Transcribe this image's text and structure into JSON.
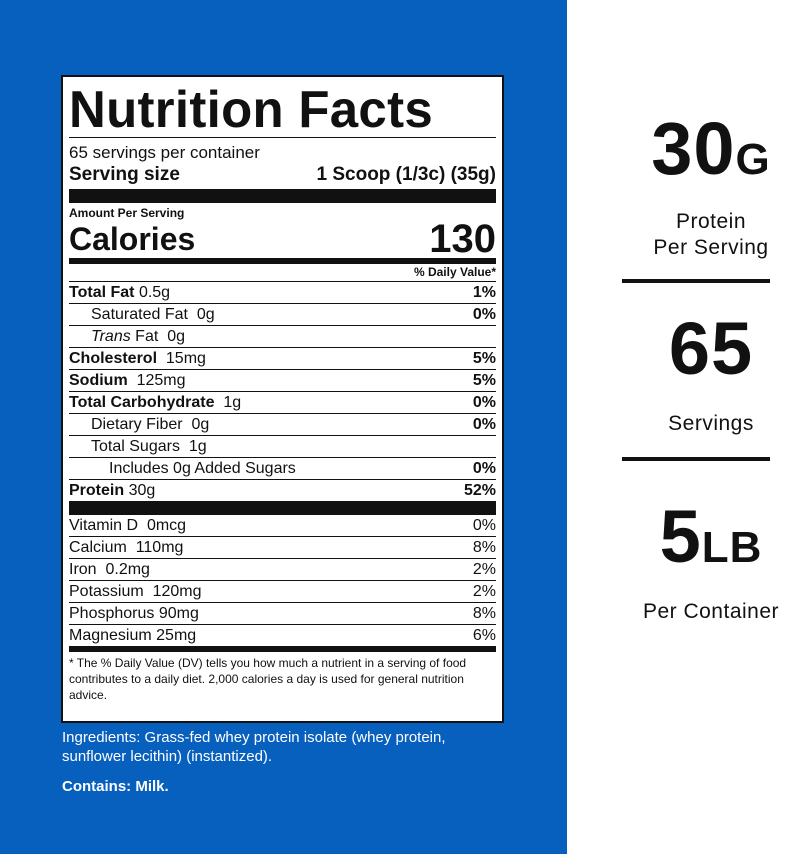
{
  "label": {
    "title": "Nutrition Facts",
    "servings_per_container": "65 servings per container",
    "serving_size_label": "Serving size",
    "serving_size_value": "1 Scoop (1/3c) (35g)",
    "amount_per_serving": "Amount Per Serving",
    "calories_label": "Calories",
    "calories_value": "130",
    "daily_value_header": "% Daily Value*",
    "nutrients": [
      {
        "name": "Total Fat",
        "amount": "0.5g",
        "pct": "1%"
      },
      {
        "name": "Saturated Fat",
        "amount": "0g",
        "pct": "0%"
      },
      {
        "name": "Trans",
        "name_rest": "Fat",
        "amount": "0g",
        "pct": ""
      },
      {
        "name": "Cholesterol",
        "amount": "15mg",
        "pct": "5%"
      },
      {
        "name": "Sodium",
        "amount": "125mg",
        "pct": "5%"
      },
      {
        "name": "Total Carbohydrate",
        "amount": "1g",
        "pct": "0%"
      },
      {
        "name": "Dietary Fiber",
        "amount": "0g",
        "pct": "0%"
      },
      {
        "name": "Total Sugars",
        "amount": "1g",
        "pct": ""
      },
      {
        "name": "Includes 0g Added Sugars",
        "amount": "",
        "pct": "0%"
      },
      {
        "name": "Protein",
        "amount": "30g",
        "pct": "52%"
      }
    ],
    "vitamins": [
      {
        "name": "Vitamin D",
        "amount": "0mcg",
        "pct": "0%"
      },
      {
        "name": "Calcium",
        "amount": "110mg",
        "pct": "8%"
      },
      {
        "name": "Iron",
        "amount": "0.2mg",
        "pct": "2%"
      },
      {
        "name": "Potassium",
        "amount": "120mg",
        "pct": "2%"
      },
      {
        "name": "Phosphorus",
        "amount": "90mg",
        "pct": "8%"
      },
      {
        "name": "Magnesium",
        "amount": "25mg",
        "pct": "6%"
      }
    ],
    "footnote": "* The % Daily Value (DV) tells you how much a nutrient in a serving of food contributes to a daily diet. 2,000 calories a day is used for general nutrition advice."
  },
  "ingredients": "Ingredients: Grass-fed whey protein isolate (whey protein, sunflower lecithin) (instantized).",
  "contains": "Contains: Milk.",
  "stats": [
    {
      "value": "30",
      "unit": "G",
      "caption_line1": "Protein",
      "caption_line2": "Per Serving"
    },
    {
      "value": "65",
      "unit": "",
      "caption_line1": "Servings",
      "caption_line2": ""
    },
    {
      "value": "5",
      "unit": "LB",
      "caption_line1": "Per Container",
      "caption_line2": ""
    }
  ],
  "colors": {
    "panel_blue": "#0760be",
    "text_dark": "#111111"
  }
}
